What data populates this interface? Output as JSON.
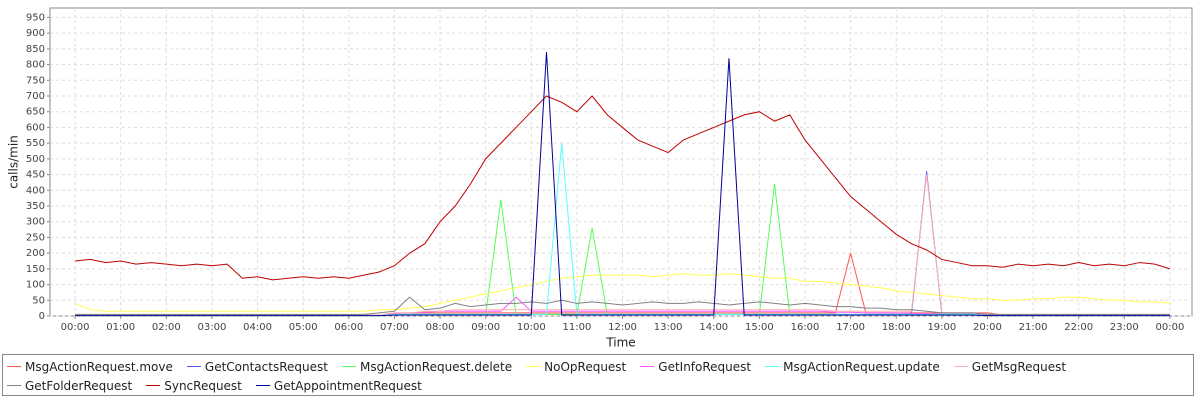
{
  "chart_data": {
    "type": "line",
    "y_label": "calls/min",
    "x_label": "Time",
    "xlim": [
      -33,
      1469
    ],
    "ylim": [
      0,
      980
    ],
    "grid": true,
    "yticks": [
      0,
      50,
      100,
      150,
      200,
      250,
      300,
      350,
      400,
      450,
      500,
      550,
      600,
      650,
      700,
      750,
      800,
      850,
      900,
      950
    ],
    "xticks": [
      {
        "value": 0,
        "label": "00:00"
      },
      {
        "value": 60,
        "label": "01:00"
      },
      {
        "value": 120,
        "label": "02:00"
      },
      {
        "value": 180,
        "label": "03:00"
      },
      {
        "value": 240,
        "label": "04:00"
      },
      {
        "value": 300,
        "label": "05:00"
      },
      {
        "value": 360,
        "label": "06:00"
      },
      {
        "value": 420,
        "label": "07:00"
      },
      {
        "value": 480,
        "label": "08:00"
      },
      {
        "value": 540,
        "label": "09:00"
      },
      {
        "value": 600,
        "label": "10:00"
      },
      {
        "value": 660,
        "label": "11:00"
      },
      {
        "value": 720,
        "label": "12:00"
      },
      {
        "value": 780,
        "label": "13:00"
      },
      {
        "value": 840,
        "label": "14:00"
      },
      {
        "value": 900,
        "label": "15:00"
      },
      {
        "value": 960,
        "label": "16:00"
      },
      {
        "value": 1020,
        "label": "17:00"
      },
      {
        "value": 1080,
        "label": "18:00"
      },
      {
        "value": 1140,
        "label": "19:00"
      },
      {
        "value": 1200,
        "label": "20:00"
      },
      {
        "value": 1260,
        "label": "21:00"
      },
      {
        "value": 1320,
        "label": "22:00"
      },
      {
        "value": 1380,
        "label": "23:00"
      },
      {
        "value": 1440,
        "label": "00:00"
      }
    ],
    "x": [
      0,
      20,
      40,
      60,
      80,
      100,
      120,
      140,
      160,
      180,
      200,
      220,
      240,
      260,
      280,
      300,
      320,
      340,
      360,
      380,
      400,
      420,
      440,
      460,
      480,
      500,
      520,
      540,
      560,
      580,
      600,
      620,
      640,
      660,
      680,
      700,
      720,
      740,
      760,
      780,
      800,
      820,
      840,
      860,
      880,
      900,
      920,
      940,
      960,
      980,
      1000,
      1020,
      1040,
      1060,
      1080,
      1100,
      1120,
      1140,
      1160,
      1180,
      1200,
      1220,
      1240,
      1260,
      1280,
      1300,
      1320,
      1340,
      1360,
      1380,
      1400,
      1420,
      1440
    ],
    "series": [
      {
        "name": "MsgActionRequest.move",
        "color": "#ff5555",
        "values": [
          2,
          2,
          2,
          2,
          2,
          2,
          2,
          2,
          2,
          2,
          2,
          2,
          2,
          2,
          2,
          2,
          2,
          2,
          2,
          2,
          2,
          10,
          10,
          10,
          10,
          10,
          10,
          10,
          10,
          10,
          10,
          10,
          10,
          10,
          10,
          10,
          10,
          10,
          10,
          10,
          10,
          10,
          10,
          10,
          10,
          10,
          10,
          10,
          10,
          10,
          10,
          200,
          10,
          10,
          10,
          10,
          10,
          10,
          10,
          10,
          10,
          3,
          3,
          3,
          3,
          3,
          3,
          3,
          3,
          3,
          3,
          3,
          3
        ]
      },
      {
        "name": "GetContactsRequest",
        "color": "#5555ff",
        "values": [
          3,
          3,
          3,
          3,
          3,
          3,
          3,
          3,
          3,
          3,
          3,
          3,
          3,
          3,
          3,
          3,
          3,
          3,
          3,
          3,
          3,
          5,
          5,
          5,
          5,
          5,
          5,
          5,
          5,
          5,
          5,
          5,
          5,
          5,
          5,
          5,
          5,
          5,
          5,
          5,
          5,
          5,
          5,
          5,
          5,
          5,
          5,
          5,
          5,
          5,
          5,
          5,
          5,
          5,
          5,
          5,
          460,
          5,
          5,
          5,
          3,
          3,
          3,
          3,
          3,
          3,
          3,
          3,
          3,
          3,
          3,
          3,
          3
        ]
      },
      {
        "name": "MsgActionRequest.delete",
        "color": "#55ff55",
        "values": [
          1,
          1,
          1,
          1,
          1,
          1,
          1,
          1,
          1,
          1,
          1,
          1,
          1,
          1,
          1,
          1,
          1,
          1,
          1,
          1,
          1,
          5,
          5,
          5,
          5,
          5,
          5,
          5,
          370,
          5,
          5,
          5,
          5,
          5,
          280,
          5,
          5,
          5,
          5,
          5,
          5,
          5,
          5,
          5,
          5,
          5,
          420,
          5,
          5,
          5,
          5,
          5,
          5,
          5,
          5,
          5,
          5,
          5,
          5,
          5,
          2,
          2,
          2,
          2,
          2,
          2,
          2,
          2,
          2,
          2,
          2,
          2,
          2
        ]
      },
      {
        "name": "NoOpRequest",
        "color": "#ffff55",
        "values": [
          40,
          20,
          15,
          15,
          15,
          15,
          15,
          15,
          15,
          15,
          15,
          15,
          15,
          15,
          15,
          15,
          15,
          15,
          15,
          15,
          20,
          20,
          25,
          30,
          40,
          50,
          60,
          70,
          80,
          90,
          100,
          110,
          120,
          125,
          130,
          130,
          130,
          130,
          125,
          130,
          135,
          130,
          130,
          135,
          130,
          125,
          120,
          120,
          110,
          110,
          105,
          100,
          95,
          90,
          80,
          75,
          70,
          65,
          60,
          55,
          55,
          50,
          50,
          55,
          55,
          60,
          60,
          55,
          50,
          50,
          45,
          45,
          40
        ]
      },
      {
        "name": "GetInfoRequest",
        "color": "#ff55ff",
        "values": [
          2,
          2,
          2,
          2,
          2,
          2,
          2,
          2,
          2,
          2,
          2,
          2,
          2,
          2,
          2,
          2,
          2,
          2,
          2,
          2,
          2,
          8,
          10,
          12,
          15,
          15,
          15,
          15,
          15,
          60,
          15,
          15,
          15,
          15,
          15,
          15,
          15,
          15,
          15,
          15,
          15,
          15,
          15,
          15,
          15,
          15,
          15,
          15,
          15,
          15,
          12,
          12,
          10,
          10,
          10,
          8,
          8,
          5,
          5,
          5,
          3,
          3,
          3,
          3,
          3,
          3,
          3,
          3,
          3,
          3,
          3,
          3,
          3
        ]
      },
      {
        "name": "MsgActionRequest.update",
        "color": "#55ffff",
        "values": [
          1,
          1,
          1,
          1,
          1,
          1,
          1,
          1,
          1,
          1,
          1,
          1,
          1,
          1,
          1,
          1,
          1,
          1,
          1,
          1,
          1,
          5,
          5,
          5,
          5,
          5,
          5,
          5,
          5,
          5,
          5,
          5,
          550,
          5,
          5,
          5,
          5,
          5,
          5,
          5,
          5,
          5,
          5,
          5,
          5,
          5,
          5,
          5,
          5,
          5,
          5,
          5,
          5,
          5,
          5,
          5,
          5,
          5,
          5,
          5,
          2,
          2,
          2,
          2,
          2,
          2,
          2,
          2,
          2,
          2,
          2,
          2,
          2
        ]
      },
      {
        "name": "GetMsgRequest",
        "color": "#ffafaf",
        "values": [
          3,
          3,
          3,
          3,
          3,
          3,
          3,
          3,
          3,
          3,
          3,
          3,
          3,
          3,
          3,
          3,
          3,
          3,
          3,
          3,
          3,
          10,
          10,
          15,
          15,
          20,
          20,
          20,
          20,
          20,
          20,
          20,
          20,
          20,
          20,
          20,
          20,
          20,
          20,
          20,
          20,
          20,
          20,
          20,
          20,
          20,
          20,
          20,
          20,
          20,
          15,
          15,
          15,
          15,
          15,
          15,
          450,
          10,
          10,
          10,
          5,
          5,
          5,
          5,
          5,
          5,
          5,
          5,
          5,
          5,
          5,
          5,
          5
        ]
      },
      {
        "name": "GetFolderRequest",
        "color": "#808080",
        "values": [
          5,
          5,
          5,
          5,
          5,
          5,
          5,
          5,
          5,
          5,
          5,
          5,
          5,
          5,
          5,
          5,
          5,
          5,
          5,
          5,
          10,
          15,
          60,
          20,
          25,
          40,
          30,
          35,
          40,
          40,
          45,
          40,
          50,
          40,
          45,
          40,
          35,
          40,
          45,
          40,
          40,
          45,
          40,
          35,
          40,
          45,
          40,
          35,
          40,
          35,
          30,
          30,
          25,
          25,
          20,
          20,
          15,
          10,
          10,
          10,
          5,
          5,
          5,
          5,
          5,
          5,
          5,
          5,
          5,
          5,
          5,
          5,
          5
        ]
      },
      {
        "name": "SyncRequest",
        "color": "#c00000",
        "values": [
          175,
          180,
          170,
          175,
          165,
          170,
          165,
          160,
          165,
          160,
          165,
          120,
          125,
          115,
          120,
          125,
          120,
          125,
          120,
          130,
          140,
          160,
          200,
          230,
          300,
          350,
          420,
          500,
          550,
          600,
          650,
          700,
          680,
          650,
          700,
          640,
          600,
          560,
          540,
          520,
          560,
          580,
          600,
          620,
          640,
          650,
          620,
          640,
          560,
          500,
          440,
          380,
          340,
          300,
          260,
          230,
          210,
          180,
          170,
          160,
          160,
          155,
          165,
          160,
          165,
          160,
          170,
          160,
          165,
          160,
          170,
          165,
          150
        ]
      },
      {
        "name": "GetAppointmentRequest",
        "color": "#000099",
        "values": [
          1,
          1,
          1,
          1,
          1,
          1,
          1,
          1,
          1,
          1,
          1,
          1,
          1,
          1,
          1,
          1,
          1,
          1,
          1,
          1,
          1,
          3,
          3,
          3,
          3,
          3,
          3,
          3,
          3,
          3,
          3,
          840,
          3,
          3,
          3,
          3,
          3,
          3,
          3,
          3,
          3,
          3,
          3,
          820,
          3,
          3,
          3,
          3,
          3,
          3,
          3,
          3,
          3,
          3,
          3,
          3,
          3,
          3,
          3,
          3,
          1,
          1,
          1,
          1,
          1,
          1,
          1,
          1,
          1,
          1,
          1,
          1,
          1
        ]
      }
    ]
  }
}
